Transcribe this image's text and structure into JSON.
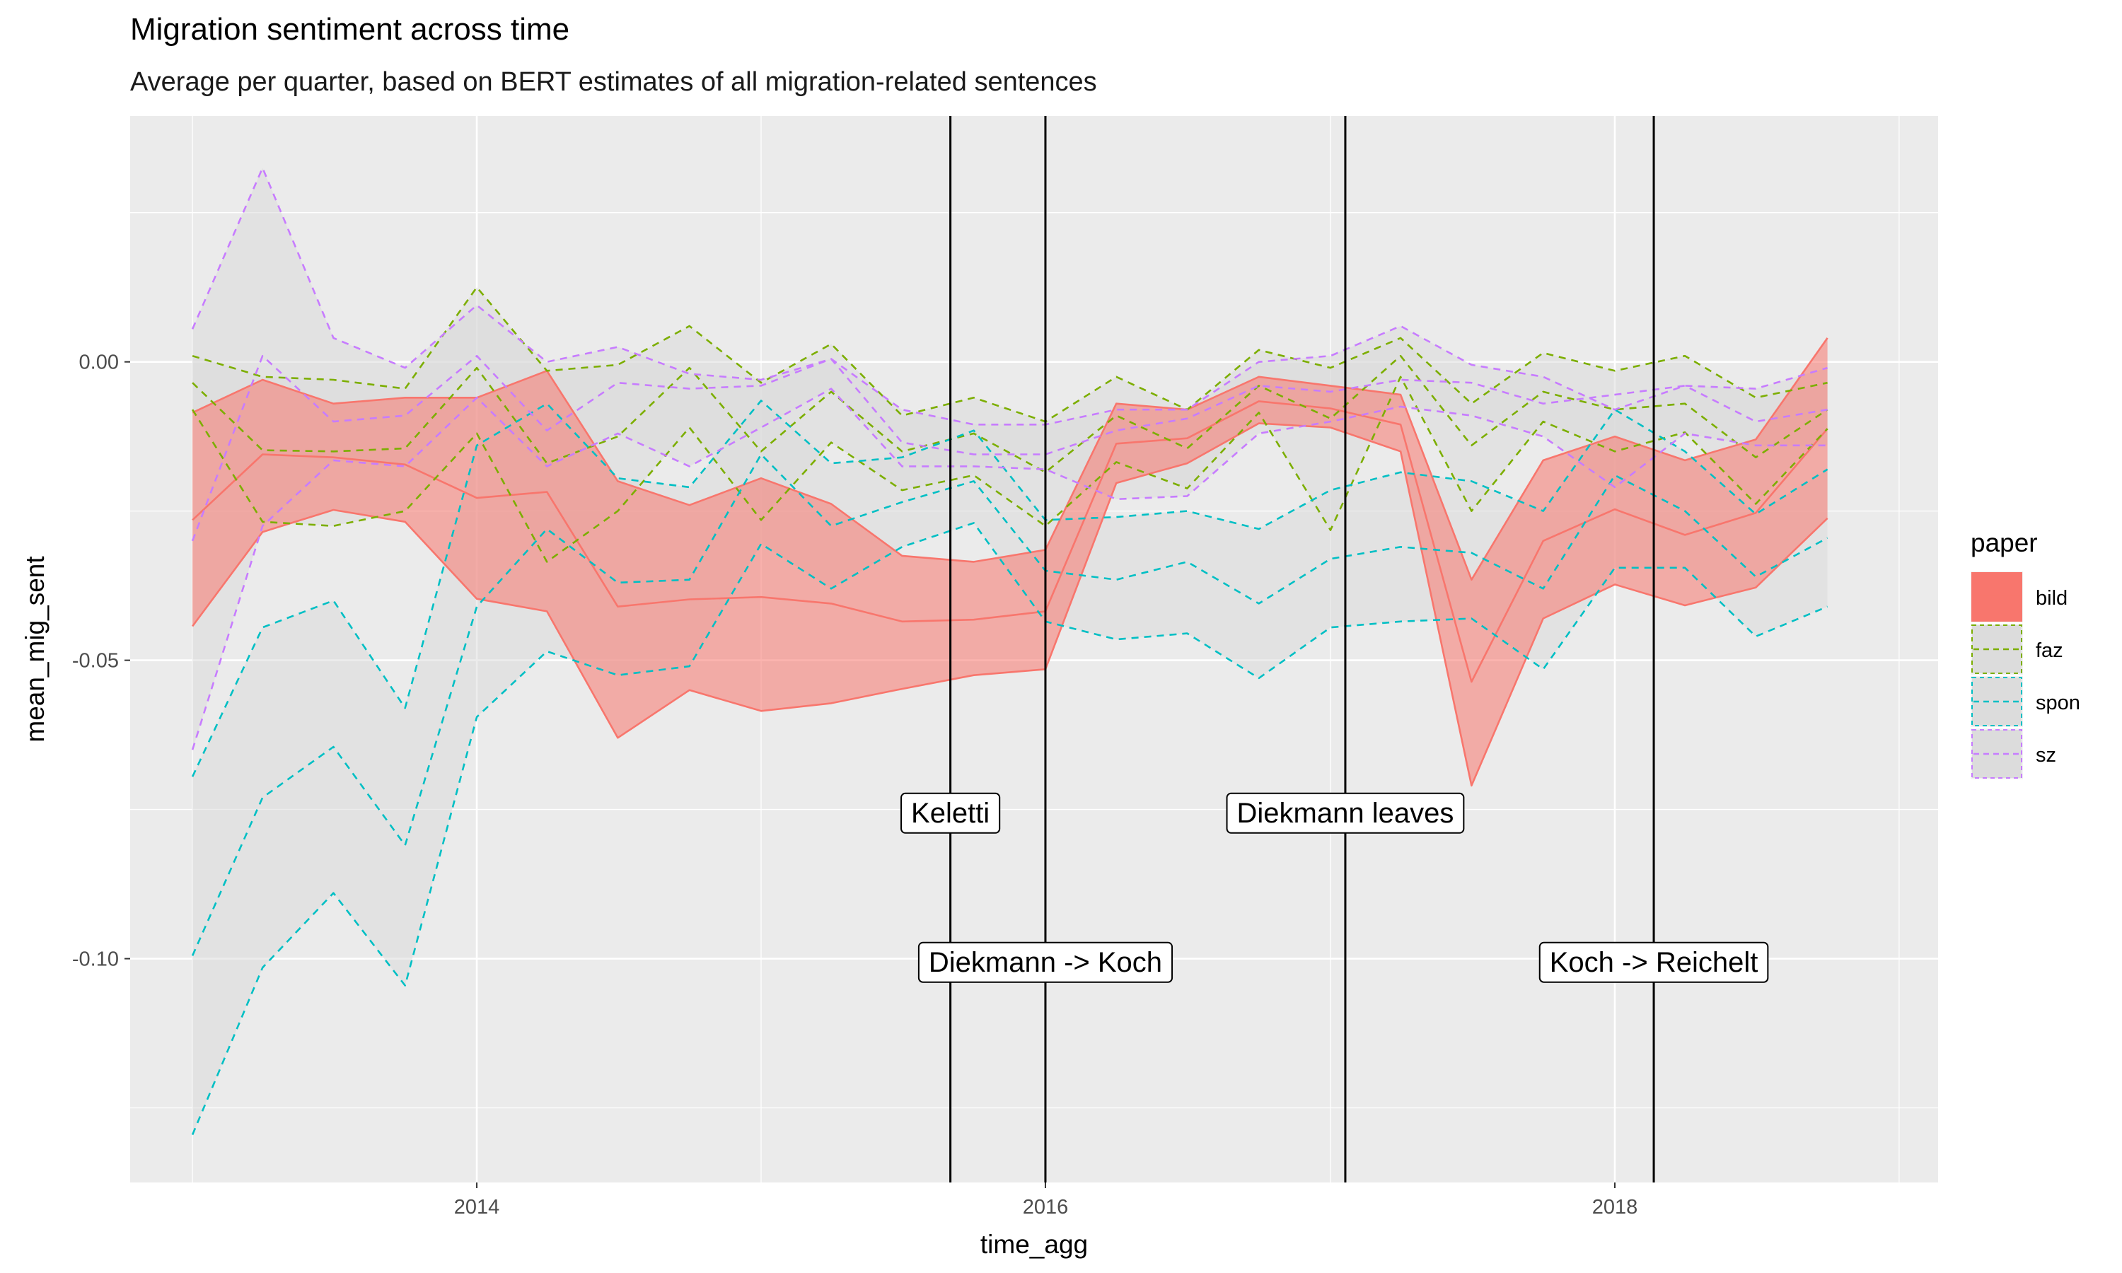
{
  "chart_data": {
    "type": "line",
    "title": "Migration sentiment across time",
    "subtitle": "Average per quarter, based on BERT estimates of all migration-related sentences",
    "xlabel": "time_agg",
    "ylabel": "mean_mig_sent",
    "x_ticks": [
      "2014",
      "2016",
      "2018"
    ],
    "y_ticks": [
      "0.00",
      "-0.05",
      "-0.10"
    ],
    "xlim": [
      "2012-10-13",
      "2019-02-20"
    ],
    "ylim": [
      -0.1375,
      0.0412
    ],
    "grid": true,
    "legend_title": "paper",
    "legend_position": "right",
    "x": [
      "2013-01-01",
      "2013-04-01",
      "2013-07-01",
      "2013-10-01",
      "2014-01-01",
      "2014-04-01",
      "2014-07-01",
      "2014-10-01",
      "2015-01-01",
      "2015-04-01",
      "2015-07-01",
      "2015-10-01",
      "2016-01-01",
      "2016-04-01",
      "2016-07-01",
      "2016-10-01",
      "2017-01-01",
      "2017-04-01",
      "2017-07-01",
      "2017-10-01",
      "2018-01-01",
      "2018-04-01",
      "2018-07-01",
      "2018-10-01"
    ],
    "series": [
      {
        "name": "bild",
        "color": "#F8766D",
        "linetype": "solid",
        "mean": [
          -0.0265,
          -0.0155,
          -0.016,
          -0.0172,
          -0.0228,
          -0.0218,
          -0.041,
          -0.0398,
          -0.0394,
          -0.0405,
          -0.0435,
          -0.0432,
          -0.0418,
          -0.0137,
          -0.0128,
          -0.0066,
          -0.0078,
          -0.0105,
          -0.0536,
          -0.03,
          -0.0247,
          -0.029,
          -0.0253,
          -0.0112
        ],
        "lower": [
          -0.0443,
          -0.0285,
          -0.0248,
          -0.0268,
          -0.0397,
          -0.0418,
          -0.063,
          -0.055,
          -0.0585,
          -0.0572,
          -0.0548,
          -0.0525,
          -0.0515,
          -0.0203,
          -0.017,
          -0.0103,
          -0.011,
          -0.015,
          -0.071,
          -0.043,
          -0.0373,
          -0.0408,
          -0.0378,
          -0.0262
        ],
        "upper": [
          -0.0085,
          -0.003,
          -0.007,
          -0.006,
          -0.006,
          -0.0015,
          -0.02,
          -0.024,
          -0.0195,
          -0.0238,
          -0.0325,
          -0.0335,
          -0.0315,
          -0.007,
          -0.008,
          -0.0025,
          -0.004,
          -0.0055,
          -0.0365,
          -0.0165,
          -0.0125,
          -0.0165,
          -0.013,
          0.004
        ]
      },
      {
        "name": "faz",
        "color": "#7CAE00",
        "linetype": "dashed",
        "mean": [
          -0.0035,
          -0.0148,
          -0.015,
          -0.0145,
          -0.001,
          -0.017,
          -0.0125,
          -0.001,
          -0.015,
          -0.005,
          -0.015,
          -0.012,
          -0.0185,
          -0.009,
          -0.0145,
          -0.004,
          -0.0095,
          0.001,
          -0.014,
          -0.005,
          -0.008,
          -0.007,
          -0.016,
          -0.008
        ],
        "lower": [
          -0.008,
          -0.0268,
          -0.0275,
          -0.025,
          -0.012,
          -0.0335,
          -0.025,
          -0.011,
          -0.0265,
          -0.0135,
          -0.0215,
          -0.019,
          -0.0275,
          -0.0168,
          -0.0212,
          -0.0085,
          -0.0282,
          -0.0025,
          -0.025,
          -0.01,
          -0.015,
          -0.0118,
          -0.0238,
          -0.0112
        ],
        "upper": [
          0.001,
          -0.0025,
          -0.003,
          -0.0045,
          0.0125,
          -0.0015,
          -0.0005,
          0.006,
          -0.0035,
          0.003,
          -0.009,
          -0.006,
          -0.01,
          -0.0025,
          -0.008,
          0.002,
          -0.001,
          0.004,
          -0.007,
          0.0015,
          -0.0015,
          0.001,
          -0.006,
          -0.0035
        ]
      },
      {
        "name": "spon",
        "color": "#00BFC4",
        "linetype": "dashed",
        "mean": [
          -0.0995,
          -0.073,
          -0.0645,
          -0.081,
          -0.041,
          -0.028,
          -0.037,
          -0.0365,
          -0.0155,
          -0.0275,
          -0.0235,
          -0.02,
          -0.035,
          -0.0365,
          -0.0335,
          -0.0405,
          -0.033,
          -0.031,
          -0.032,
          -0.038,
          -0.019,
          -0.025,
          -0.036,
          -0.0295
        ],
        "lower": [
          -0.1295,
          -0.1015,
          -0.089,
          -0.1045,
          -0.0595,
          -0.0485,
          -0.0525,
          -0.051,
          -0.0305,
          -0.038,
          -0.031,
          -0.027,
          -0.0435,
          -0.0465,
          -0.0455,
          -0.053,
          -0.0445,
          -0.0435,
          -0.043,
          -0.0515,
          -0.0345,
          -0.0345,
          -0.046,
          -0.041
        ],
        "upper": [
          -0.0695,
          -0.0445,
          -0.04,
          -0.058,
          -0.014,
          -0.007,
          -0.0195,
          -0.021,
          -0.0065,
          -0.017,
          -0.016,
          -0.0115,
          -0.0265,
          -0.026,
          -0.025,
          -0.028,
          -0.0215,
          -0.0185,
          -0.02,
          -0.025,
          -0.008,
          -0.015,
          -0.0255,
          -0.018
        ]
      },
      {
        "name": "sz",
        "color": "#C77CFF",
        "linetype": "dashed",
        "mean": [
          -0.03,
          0.001,
          -0.01,
          -0.009,
          0.001,
          -0.0115,
          -0.0035,
          -0.0045,
          -0.004,
          0.0005,
          -0.0135,
          -0.0155,
          -0.0155,
          -0.0115,
          -0.0095,
          -0.004,
          -0.005,
          -0.003,
          -0.0035,
          -0.007,
          -0.0055,
          -0.004,
          -0.01,
          -0.008
        ],
        "lower": [
          -0.065,
          -0.0275,
          -0.0165,
          -0.0175,
          -0.006,
          -0.0175,
          -0.012,
          -0.0175,
          -0.011,
          -0.0045,
          -0.0175,
          -0.0175,
          -0.018,
          -0.023,
          -0.0225,
          -0.012,
          -0.01,
          -0.0075,
          -0.009,
          -0.0125,
          -0.021,
          -0.012,
          -0.014,
          -0.014
        ],
        "upper": [
          0.0055,
          0.0325,
          0.004,
          -0.001,
          0.0095,
          0.0,
          0.0025,
          -0.002,
          -0.003,
          0.0005,
          -0.008,
          -0.0105,
          -0.0105,
          -0.008,
          -0.008,
          0.0,
          0.001,
          0.006,
          -0.0005,
          -0.0025,
          -0.008,
          -0.004,
          -0.0045,
          -0.001
        ]
      }
    ],
    "events": [
      {
        "label": "Keletti",
        "date": "2015-09-01",
        "label_y": -0.0755
      },
      {
        "label": "Diekmann -> Koch",
        "date": "2016-01-01",
        "label_y": -0.1005
      },
      {
        "label": "Diekmann leaves",
        "date": "2017-01-20",
        "label_y": -0.0755
      },
      {
        "label": "Koch -> Reichelt",
        "date": "2018-02-20",
        "label_y": -0.1005
      }
    ],
    "band_fill": "#D9D9D9",
    "bild_band_fill": "#F8766D",
    "panel_background": "#EBEBEB"
  }
}
